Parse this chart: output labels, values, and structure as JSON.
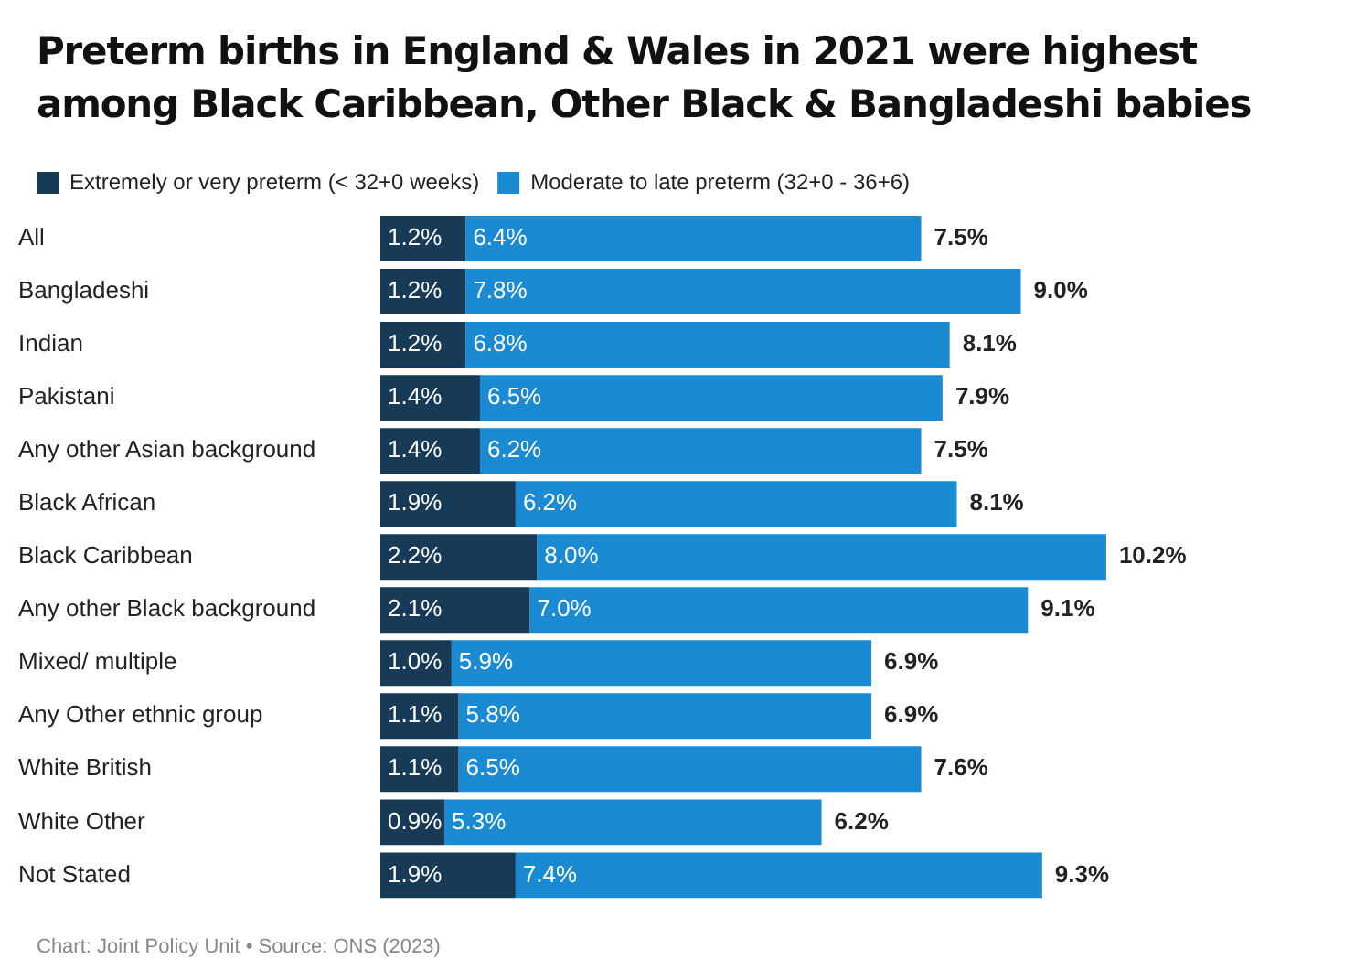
{
  "chart_data": {
    "type": "bar",
    "orientation": "horizontal",
    "stacked": true,
    "title": "Preterm births in England & Wales in 2021 were highest among Black Caribbean, Other Black & Bangladeshi babies",
    "categories": [
      "All",
      "Bangladeshi",
      "Indian",
      "Pakistani",
      "Any other Asian background",
      "Black African",
      "Black Caribbean",
      "Any other Black background",
      "Mixed/ multiple",
      "Any Other ethnic group",
      "White British",
      "White Other",
      "Not Stated"
    ],
    "series": [
      {
        "name": "Extremely or very preterm (< 32+0 weeks)",
        "color": "#173a57",
        "values": [
          1.2,
          1.2,
          1.2,
          1.4,
          1.4,
          1.9,
          2.2,
          2.1,
          1.0,
          1.1,
          1.1,
          0.9,
          1.9
        ],
        "value_labels": [
          "1.2%",
          "1.2%",
          "1.2%",
          "1.4%",
          "1.4%",
          "1.9%",
          "2.2%",
          "2.1%",
          "1.0%",
          "1.1%",
          "1.1%",
          "0.9%",
          "1.9%"
        ]
      },
      {
        "name": "Moderate to late preterm (32+0 - 36+6)",
        "color": "#1a8bd3",
        "values": [
          6.4,
          7.8,
          6.8,
          6.5,
          6.2,
          6.2,
          8.0,
          7.0,
          5.9,
          5.8,
          6.5,
          5.3,
          7.4
        ],
        "value_labels": [
          "6.4%",
          "7.8%",
          "6.8%",
          "6.5%",
          "6.2%",
          "6.2%",
          "8.0%",
          "7.0%",
          "5.9%",
          "5.8%",
          "6.5%",
          "5.3%",
          "7.4%"
        ]
      }
    ],
    "totals": [
      "7.5%",
      "9.0%",
      "8.1%",
      "7.9%",
      "7.5%",
      "8.1%",
      "10.2%",
      "9.1%",
      "6.9%",
      "6.9%",
      "7.6%",
      "6.2%",
      "9.3%"
    ],
    "tick_labels": "y",
    "grid": false,
    "legend": "top left",
    "annotations": [
      "Chart: Joint Policy Unit • Source: ONS (2023)"
    ]
  }
}
